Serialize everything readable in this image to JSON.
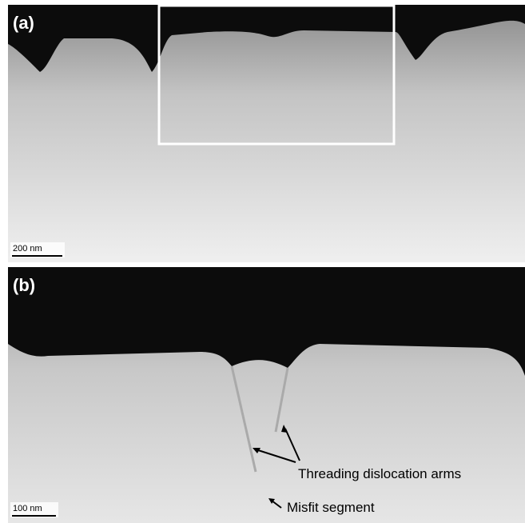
{
  "panels": [
    {
      "label": "(a)",
      "scale_bar": "200 nm"
    },
    {
      "label": "(b)",
      "scale_bar": "100 nm",
      "annotations": [
        "Threading dislocation arms",
        "Misfit segment"
      ]
    }
  ]
}
